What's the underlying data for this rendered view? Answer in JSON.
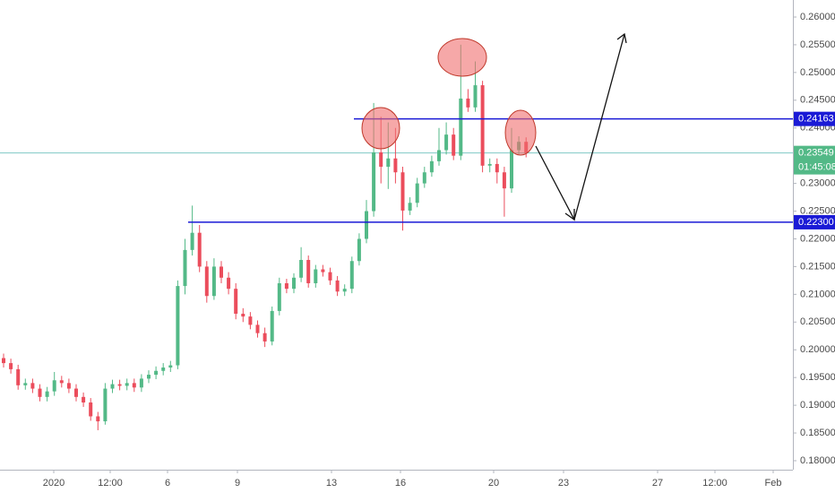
{
  "chart_data": {
    "type": "candlestick",
    "up_color": "#53b987",
    "down_color": "#eb4d5c",
    "ylim": [
      0.17838,
      0.26307
    ],
    "yticks": [
      {
        "value": 0.26,
        "label": "0.26000"
      },
      {
        "value": 0.255,
        "label": "0.25500"
      },
      {
        "value": 0.25,
        "label": "0.25000"
      },
      {
        "value": 0.245,
        "label": "0.24500"
      },
      {
        "value": 0.24,
        "label": "0.24000"
      },
      {
        "value": 0.235,
        "label": "0.23500"
      },
      {
        "value": 0.23,
        "label": "0.23000"
      },
      {
        "value": 0.225,
        "label": "0.22500"
      },
      {
        "value": 0.22,
        "label": "0.22000"
      },
      {
        "value": 0.215,
        "label": "0.21500"
      },
      {
        "value": 0.21,
        "label": "0.21000"
      },
      {
        "value": 0.205,
        "label": "0.20500"
      },
      {
        "value": 0.2,
        "label": "0.20000"
      },
      {
        "value": 0.195,
        "label": "0.19500"
      },
      {
        "value": 0.19,
        "label": "0.19000"
      },
      {
        "value": 0.185,
        "label": "0.18500"
      },
      {
        "value": 0.18,
        "label": "0.18000"
      }
    ],
    "xtick_labels": [
      "2020",
      "12:00",
      "6",
      "9",
      "13",
      "16",
      "20",
      "23",
      "27",
      "12:00",
      "Feb"
    ],
    "open": [
      0.1985,
      0.1976,
      0.1965,
      0.1936,
      0.194,
      0.193,
      0.1915,
      0.1925,
      0.1945,
      0.194,
      0.193,
      0.1915,
      0.1905,
      0.188,
      0.1871,
      0.193,
      0.1938,
      0.1935,
      0.194,
      0.1932,
      0.1948,
      0.1955,
      0.1962,
      0.1968,
      0.1972,
      0.2115,
      0.218,
      0.2211,
      0.215,
      0.2097,
      0.215,
      0.213,
      0.211,
      0.2065,
      0.206,
      0.2045,
      0.203,
      0.2015,
      0.207,
      0.212,
      0.211,
      0.213,
      0.2162,
      0.212,
      0.2145,
      0.214,
      0.2125,
      0.2105,
      0.211,
      0.216,
      0.22,
      0.225,
      0.2356,
      0.233,
      0.2345,
      0.232,
      0.2251,
      0.2265,
      0.23,
      0.232,
      0.234,
      0.236,
      0.2388,
      0.235,
      0.2453,
      0.2437,
      0.2477,
      0.2332,
      0.2335,
      0.232,
      0.2291,
      0.236,
      0.2375
    ],
    "high": [
      0.1993,
      0.1984,
      0.1973,
      0.1948,
      0.1948,
      0.1938,
      0.1933,
      0.196,
      0.1953,
      0.1948,
      0.1938,
      0.1923,
      0.1913,
      0.1888,
      0.194,
      0.1946,
      0.1946,
      0.1948,
      0.1948,
      0.1956,
      0.1963,
      0.197,
      0.1976,
      0.198,
      0.2125,
      0.22,
      0.226,
      0.2225,
      0.216,
      0.2165,
      0.216,
      0.214,
      0.212,
      0.2075,
      0.2068,
      0.2053,
      0.204,
      0.2078,
      0.213,
      0.2128,
      0.2138,
      0.2185,
      0.217,
      0.2153,
      0.2153,
      0.2148,
      0.2133,
      0.2118,
      0.2168,
      0.221,
      0.227,
      0.2445,
      0.242,
      0.241,
      0.24,
      0.233,
      0.2275,
      0.231,
      0.233,
      0.235,
      0.24,
      0.241,
      0.24,
      0.255,
      0.247,
      0.252,
      0.2485,
      0.2345,
      0.2345,
      0.233,
      0.24,
      0.2385,
      0.2383
    ],
    "low": [
      0.1968,
      0.1957,
      0.1928,
      0.1928,
      0.1922,
      0.1907,
      0.1907,
      0.1917,
      0.1932,
      0.1922,
      0.1907,
      0.1897,
      0.1872,
      0.1855,
      0.1865,
      0.1922,
      0.1927,
      0.1927,
      0.1924,
      0.1924,
      0.194,
      0.1947,
      0.1954,
      0.196,
      0.1965,
      0.21,
      0.217,
      0.214,
      0.2085,
      0.209,
      0.212,
      0.21,
      0.2055,
      0.205,
      0.2037,
      0.2022,
      0.2005,
      0.2008,
      0.2062,
      0.2102,
      0.2102,
      0.2122,
      0.2112,
      0.2112,
      0.2132,
      0.2117,
      0.2097,
      0.2097,
      0.2102,
      0.2152,
      0.2192,
      0.224,
      0.23,
      0.229,
      0.23,
      0.2215,
      0.2243,
      0.2257,
      0.2292,
      0.2312,
      0.2332,
      0.2352,
      0.2342,
      0.2342,
      0.2429,
      0.2429,
      0.232,
      0.232,
      0.23,
      0.224,
      0.2283,
      0.2352,
      0.2347
    ],
    "close": [
      0.1976,
      0.1965,
      0.1936,
      0.194,
      0.193,
      0.1915,
      0.1925,
      0.1945,
      0.194,
      0.193,
      0.1915,
      0.1905,
      0.188,
      0.1871,
      0.193,
      0.1938,
      0.1935,
      0.194,
      0.1932,
      0.1948,
      0.1955,
      0.1962,
      0.1968,
      0.1972,
      0.2115,
      0.218,
      0.2211,
      0.215,
      0.2097,
      0.215,
      0.213,
      0.211,
      0.2065,
      0.206,
      0.2045,
      0.203,
      0.2015,
      0.207,
      0.212,
      0.211,
      0.213,
      0.2162,
      0.212,
      0.2145,
      0.214,
      0.2125,
      0.2105,
      0.211,
      0.216,
      0.22,
      0.225,
      0.2356,
      0.233,
      0.2345,
      0.232,
      0.2251,
      0.2265,
      0.23,
      0.232,
      0.234,
      0.236,
      0.2388,
      0.235,
      0.2453,
      0.2437,
      0.2477,
      0.2332,
      0.2335,
      0.232,
      0.2291,
      0.236,
      0.2375,
      0.2355
    ],
    "levels": [
      {
        "value": 0.24163,
        "label": "0.24163"
      },
      {
        "value": 0.223,
        "label": "0.22300"
      }
    ],
    "level_color": "#1a1ad6",
    "last_price": {
      "value": 0.23549,
      "label": "0.23549"
    },
    "countdown": "01:45:08"
  }
}
